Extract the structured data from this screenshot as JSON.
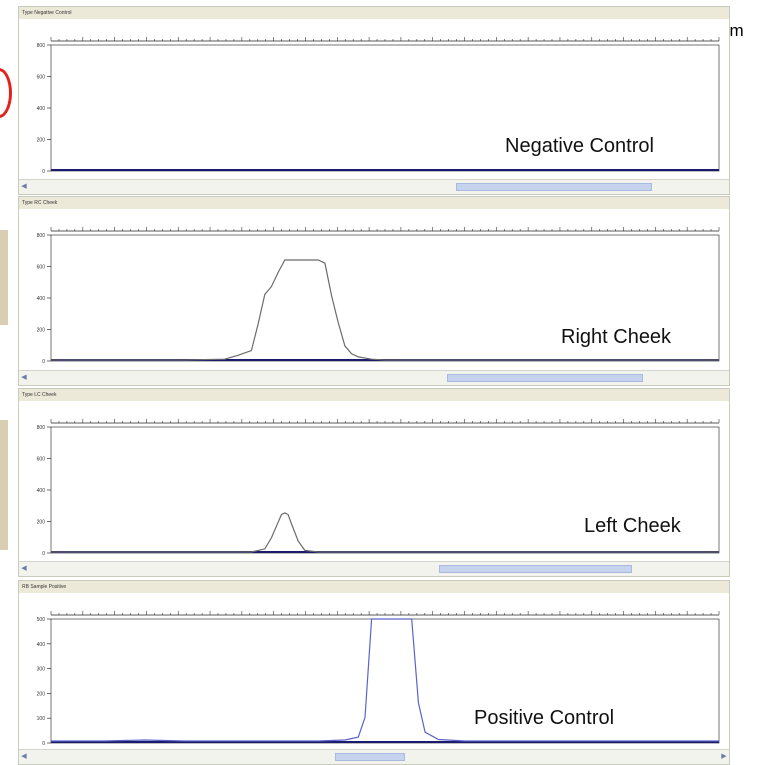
{
  "edge_text": "am",
  "colors": {
    "axis": "#1a1a6e",
    "trace_gray": "#6b6b6b",
    "trace_blue": "#5a64c8",
    "accent_red": "#e0241b"
  },
  "chart_data": [
    {
      "type": "line",
      "title": "Negative Control",
      "header": "Type Negative Control",
      "xlim": [
        0,
        100
      ],
      "ylim": [
        0,
        800
      ],
      "yticks": [
        "800",
        "600",
        "400",
        "200",
        "0"
      ],
      "series": [
        {
          "color": "#1a1a6e",
          "x": [
            0,
            100
          ],
          "y": [
            0,
            0
          ]
        }
      ]
    },
    {
      "type": "line",
      "title": "Right Cheek",
      "header": "Type RC Cheek",
      "xlim": [
        0,
        100
      ],
      "ylim": [
        0,
        800
      ],
      "yticks": [
        "800",
        "600",
        "400",
        "200",
        "0"
      ],
      "series": [
        {
          "color": "#6b6b6b",
          "x": [
            0,
            20,
            26,
            28,
            30,
            31,
            32,
            33,
            34,
            35,
            36,
            38,
            40,
            41,
            42,
            43,
            44,
            45,
            46,
            48,
            50,
            100
          ],
          "y": [
            0,
            0,
            5,
            30,
            60,
            230,
            420,
            470,
            560,
            640,
            640,
            640,
            640,
            620,
            410,
            240,
            90,
            40,
            20,
            5,
            0,
            0
          ]
        }
      ]
    },
    {
      "type": "line",
      "title": "Left Cheek",
      "header": "Type LC Cheek",
      "xlim": [
        0,
        100
      ],
      "ylim": [
        0,
        800
      ],
      "yticks": [
        "800",
        "600",
        "400",
        "200",
        "0"
      ],
      "series": [
        {
          "color": "#6b6b6b",
          "x": [
            0,
            30,
            32,
            33,
            34,
            34.5,
            35,
            35.5,
            36,
            37,
            38,
            40,
            100
          ],
          "y": [
            0,
            0,
            20,
            90,
            190,
            240,
            250,
            240,
            180,
            70,
            10,
            0,
            0
          ]
        }
      ]
    },
    {
      "type": "line",
      "title": "Positive Control",
      "header": "RB Sample Positive",
      "xlim": [
        0,
        100
      ],
      "ylim": [
        0,
        500
      ],
      "yticks": [
        "500",
        "400",
        "300",
        "200",
        "100",
        "0"
      ],
      "series": [
        {
          "color": "#5a64c8",
          "x": [
            0,
            8,
            14,
            20,
            40,
            44,
            46,
            47,
            48,
            49,
            50,
            51,
            52,
            53,
            54,
            55,
            56,
            58,
            62,
            100
          ],
          "y": [
            4,
            4,
            8,
            4,
            4,
            8,
            20,
            100,
            500,
            500,
            500,
            500,
            500,
            500,
            500,
            160,
            40,
            10,
            4,
            4
          ]
        }
      ]
    }
  ]
}
